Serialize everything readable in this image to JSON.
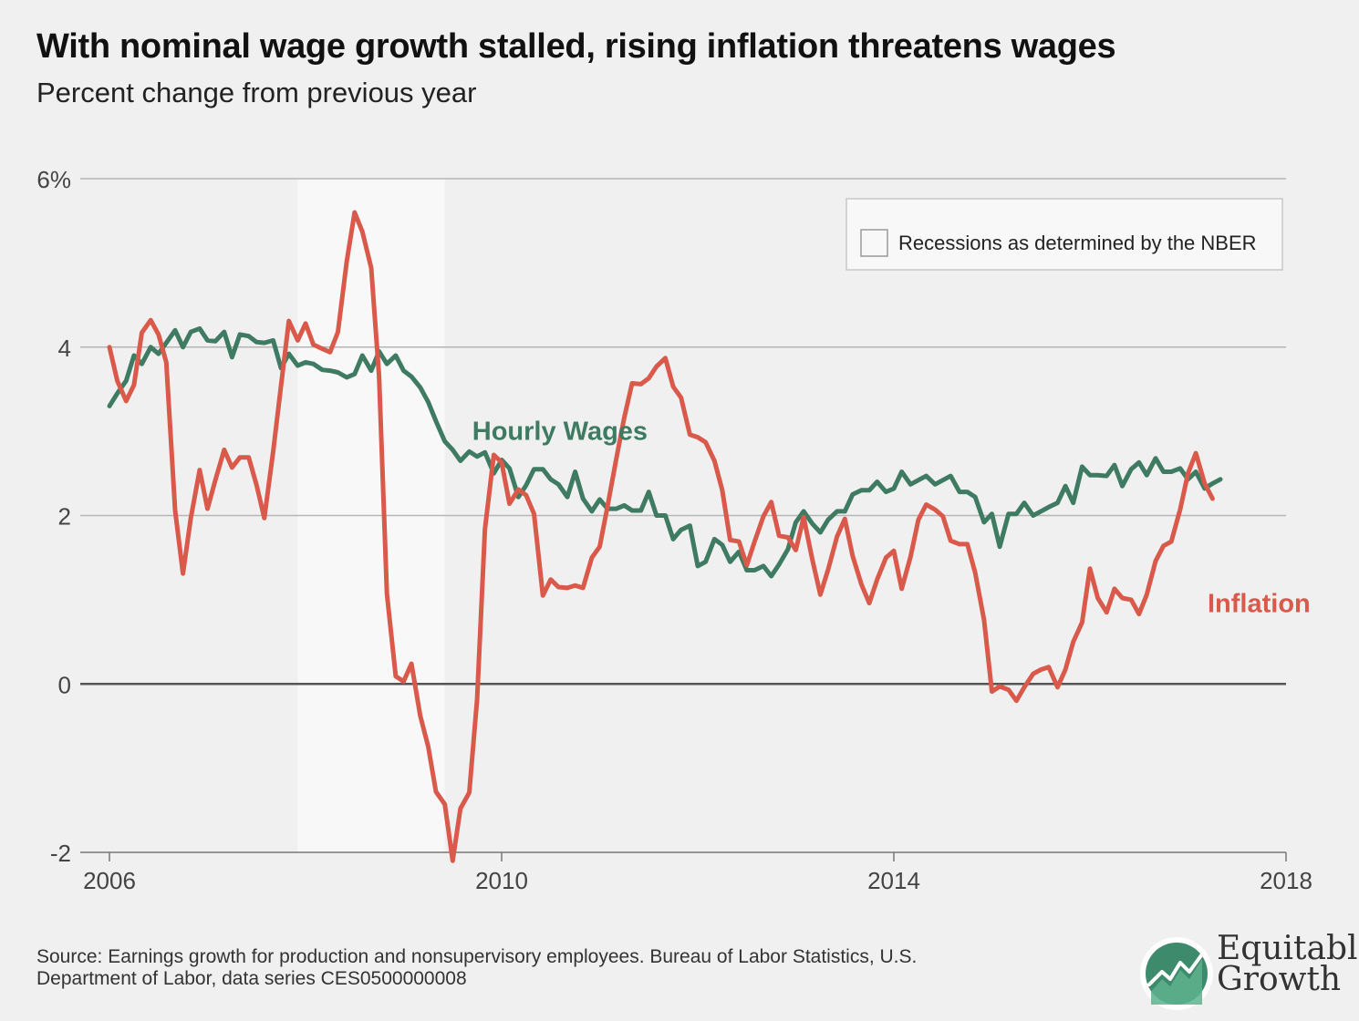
{
  "title": "With nominal wage growth stalled, rising inflation threatens wages",
  "subtitle": "Percent change from previous year",
  "source_lines": [
    "Source: Earnings growth for production and nonsupervisory employees. Bureau of Labor Statistics, U.S.",
    "Department of Labor, data series CES0500000008"
  ],
  "logo": {
    "line1": "Equitable",
    "line2": "Growth"
  },
  "chart_data": {
    "type": "line",
    "xlim": [
      2006,
      2018
    ],
    "ylim": [
      -2,
      6
    ],
    "x_ticks": [
      2006,
      2010,
      2014,
      2018
    ],
    "y_ticks": [
      {
        "value": 6,
        "label": "6%"
      },
      {
        "value": 4,
        "label": "4"
      },
      {
        "value": 2,
        "label": "2"
      },
      {
        "value": 0,
        "label": "0"
      },
      {
        "value": -2,
        "label": "-2"
      }
    ],
    "grid": true,
    "recession": {
      "start": 2007.92,
      "end": 2009.42
    },
    "legend": {
      "label": "Recessions as determined by the NBER",
      "position": "top-right"
    },
    "series": [
      {
        "name": "Hourly Wages",
        "color": "#3e7b62",
        "label_at": [
          2009.7,
          2.9
        ],
        "points": [
          [
            2006.0,
            3.3
          ],
          [
            2006.08,
            3.45
          ],
          [
            2006.17,
            3.6
          ],
          [
            2006.25,
            3.9
          ],
          [
            2006.33,
            3.8
          ],
          [
            2006.42,
            4.0
          ],
          [
            2006.5,
            3.92
          ],
          [
            2006.58,
            4.05
          ],
          [
            2006.67,
            4.2
          ],
          [
            2006.75,
            4.0
          ],
          [
            2006.83,
            4.18
          ],
          [
            2006.92,
            4.22
          ],
          [
            2007.0,
            4.08
          ],
          [
            2007.08,
            4.07
          ],
          [
            2007.17,
            4.18
          ],
          [
            2007.25,
            3.88
          ],
          [
            2007.33,
            4.15
          ],
          [
            2007.42,
            4.13
          ],
          [
            2007.5,
            4.06
          ],
          [
            2007.58,
            4.05
          ],
          [
            2007.67,
            4.08
          ],
          [
            2007.75,
            3.75
          ],
          [
            2007.83,
            3.92
          ],
          [
            2007.92,
            3.78
          ],
          [
            2008.0,
            3.82
          ],
          [
            2008.08,
            3.8
          ],
          [
            2008.17,
            3.73
          ],
          [
            2008.25,
            3.72
          ],
          [
            2008.33,
            3.7
          ],
          [
            2008.42,
            3.64
          ],
          [
            2008.5,
            3.68
          ],
          [
            2008.58,
            3.9
          ],
          [
            2008.67,
            3.72
          ],
          [
            2008.75,
            3.95
          ],
          [
            2008.83,
            3.8
          ],
          [
            2008.92,
            3.9
          ],
          [
            2009.0,
            3.72
          ],
          [
            2009.08,
            3.65
          ],
          [
            2009.17,
            3.52
          ],
          [
            2009.25,
            3.35
          ],
          [
            2009.33,
            3.12
          ],
          [
            2009.42,
            2.88
          ],
          [
            2009.5,
            2.78
          ],
          [
            2009.58,
            2.65
          ],
          [
            2009.67,
            2.76
          ],
          [
            2009.75,
            2.7
          ],
          [
            2009.83,
            2.75
          ],
          [
            2009.92,
            2.5
          ],
          [
            2010.0,
            2.66
          ],
          [
            2010.08,
            2.56
          ],
          [
            2010.17,
            2.22
          ],
          [
            2010.25,
            2.36
          ],
          [
            2010.33,
            2.55
          ],
          [
            2010.42,
            2.55
          ],
          [
            2010.5,
            2.43
          ],
          [
            2010.58,
            2.37
          ],
          [
            2010.67,
            2.22
          ],
          [
            2010.75,
            2.52
          ],
          [
            2010.83,
            2.2
          ],
          [
            2010.92,
            2.05
          ],
          [
            2011.0,
            2.19
          ],
          [
            2011.08,
            2.08
          ],
          [
            2011.17,
            2.08
          ],
          [
            2011.25,
            2.12
          ],
          [
            2011.33,
            2.06
          ],
          [
            2011.42,
            2.06
          ],
          [
            2011.5,
            2.28
          ],
          [
            2011.58,
            2.0
          ],
          [
            2011.67,
            2.0
          ],
          [
            2011.75,
            1.72
          ],
          [
            2011.83,
            1.83
          ],
          [
            2011.92,
            1.88
          ],
          [
            2012.0,
            1.4
          ],
          [
            2012.08,
            1.45
          ],
          [
            2012.17,
            1.72
          ],
          [
            2012.25,
            1.65
          ],
          [
            2012.33,
            1.45
          ],
          [
            2012.42,
            1.57
          ],
          [
            2012.5,
            1.35
          ],
          [
            2012.58,
            1.35
          ],
          [
            2012.67,
            1.4
          ],
          [
            2012.75,
            1.28
          ],
          [
            2012.83,
            1.42
          ],
          [
            2012.92,
            1.6
          ],
          [
            2013.0,
            1.92
          ],
          [
            2013.08,
            2.05
          ],
          [
            2013.17,
            1.9
          ],
          [
            2013.25,
            1.8
          ],
          [
            2013.33,
            1.95
          ],
          [
            2013.42,
            2.05
          ],
          [
            2013.5,
            2.05
          ],
          [
            2013.58,
            2.25
          ],
          [
            2013.67,
            2.3
          ],
          [
            2013.75,
            2.3
          ],
          [
            2013.83,
            2.4
          ],
          [
            2013.92,
            2.28
          ],
          [
            2014.0,
            2.32
          ],
          [
            2014.08,
            2.52
          ],
          [
            2014.17,
            2.37
          ],
          [
            2014.25,
            2.42
          ],
          [
            2014.33,
            2.47
          ],
          [
            2014.42,
            2.37
          ],
          [
            2014.5,
            2.42
          ],
          [
            2014.58,
            2.47
          ],
          [
            2014.67,
            2.28
          ],
          [
            2014.75,
            2.28
          ],
          [
            2014.83,
            2.22
          ],
          [
            2014.92,
            1.92
          ],
          [
            2015.0,
            2.02
          ],
          [
            2015.08,
            1.63
          ],
          [
            2015.17,
            2.02
          ],
          [
            2015.25,
            2.02
          ],
          [
            2015.33,
            2.15
          ],
          [
            2015.42,
            2.0
          ],
          [
            2015.5,
            2.05
          ],
          [
            2015.58,
            2.1
          ],
          [
            2015.67,
            2.15
          ],
          [
            2015.75,
            2.35
          ],
          [
            2015.83,
            2.15
          ],
          [
            2015.92,
            2.58
          ],
          [
            2016.0,
            2.48
          ],
          [
            2016.08,
            2.48
          ],
          [
            2016.17,
            2.47
          ],
          [
            2016.25,
            2.6
          ],
          [
            2016.33,
            2.35
          ],
          [
            2016.42,
            2.55
          ],
          [
            2016.5,
            2.63
          ],
          [
            2016.58,
            2.48
          ],
          [
            2016.67,
            2.68
          ],
          [
            2016.75,
            2.52
          ],
          [
            2016.83,
            2.52
          ],
          [
            2016.92,
            2.56
          ],
          [
            2017.0,
            2.43
          ],
          [
            2017.08,
            2.52
          ],
          [
            2017.17,
            2.32
          ],
          [
            2017.25,
            2.38
          ],
          [
            2017.33,
            2.43
          ]
        ]
      },
      {
        "name": "Inflation",
        "color": "#d9594a",
        "label_at": [
          2017.2,
          0.85
        ],
        "points": [
          [
            2006.0,
            4.0
          ],
          [
            2006.08,
            3.6
          ],
          [
            2006.17,
            3.36
          ],
          [
            2006.25,
            3.55
          ],
          [
            2006.33,
            4.17
          ],
          [
            2006.42,
            4.32
          ],
          [
            2006.5,
            4.15
          ],
          [
            2006.58,
            3.82
          ],
          [
            2006.67,
            2.06
          ],
          [
            2006.75,
            1.31
          ],
          [
            2006.83,
            1.97
          ],
          [
            2006.92,
            2.54
          ],
          [
            2007.0,
            2.08
          ],
          [
            2007.08,
            2.42
          ],
          [
            2007.17,
            2.78
          ],
          [
            2007.25,
            2.57
          ],
          [
            2007.33,
            2.69
          ],
          [
            2007.42,
            2.69
          ],
          [
            2007.5,
            2.36
          ],
          [
            2007.58,
            1.97
          ],
          [
            2007.67,
            2.76
          ],
          [
            2007.75,
            3.54
          ],
          [
            2007.83,
            4.31
          ],
          [
            2007.92,
            4.08
          ],
          [
            2008.0,
            4.28
          ],
          [
            2008.08,
            4.03
          ],
          [
            2008.17,
            3.98
          ],
          [
            2008.25,
            3.94
          ],
          [
            2008.33,
            4.18
          ],
          [
            2008.42,
            5.02
          ],
          [
            2008.5,
            5.6
          ],
          [
            2008.58,
            5.37
          ],
          [
            2008.67,
            4.94
          ],
          [
            2008.75,
            3.66
          ],
          [
            2008.83,
            1.07
          ],
          [
            2008.92,
            0.09
          ],
          [
            2009.0,
            0.03
          ],
          [
            2009.08,
            0.24
          ],
          [
            2009.17,
            -0.38
          ],
          [
            2009.25,
            -0.74
          ],
          [
            2009.33,
            -1.28
          ],
          [
            2009.42,
            -1.43
          ],
          [
            2009.5,
            -2.1
          ],
          [
            2009.58,
            -1.48
          ],
          [
            2009.67,
            -1.29
          ],
          [
            2009.75,
            -0.18
          ],
          [
            2009.83,
            1.84
          ],
          [
            2009.92,
            2.72
          ],
          [
            2010.0,
            2.63
          ],
          [
            2010.08,
            2.14
          ],
          [
            2010.17,
            2.31
          ],
          [
            2010.25,
            2.24
          ],
          [
            2010.33,
            2.02
          ],
          [
            2010.42,
            1.05
          ],
          [
            2010.5,
            1.24
          ],
          [
            2010.58,
            1.15
          ],
          [
            2010.67,
            1.14
          ],
          [
            2010.75,
            1.17
          ],
          [
            2010.83,
            1.14
          ],
          [
            2010.92,
            1.5
          ],
          [
            2011.0,
            1.63
          ],
          [
            2011.08,
            2.11
          ],
          [
            2011.17,
            2.68
          ],
          [
            2011.25,
            3.16
          ],
          [
            2011.33,
            3.57
          ],
          [
            2011.42,
            3.56
          ],
          [
            2011.5,
            3.63
          ],
          [
            2011.58,
            3.77
          ],
          [
            2011.67,
            3.87
          ],
          [
            2011.75,
            3.53
          ],
          [
            2011.83,
            3.4
          ],
          [
            2011.92,
            2.96
          ],
          [
            2012.0,
            2.93
          ],
          [
            2012.08,
            2.87
          ],
          [
            2012.17,
            2.65
          ],
          [
            2012.25,
            2.3
          ],
          [
            2012.33,
            1.71
          ],
          [
            2012.42,
            1.69
          ],
          [
            2012.5,
            1.41
          ],
          [
            2012.58,
            1.69
          ],
          [
            2012.67,
            1.99
          ],
          [
            2012.75,
            2.16
          ],
          [
            2012.83,
            1.76
          ],
          [
            2012.92,
            1.74
          ],
          [
            2013.0,
            1.59
          ],
          [
            2013.08,
            1.98
          ],
          [
            2013.17,
            1.47
          ],
          [
            2013.25,
            1.06
          ],
          [
            2013.33,
            1.36
          ],
          [
            2013.42,
            1.75
          ],
          [
            2013.5,
            1.96
          ],
          [
            2013.58,
            1.52
          ],
          [
            2013.67,
            1.18
          ],
          [
            2013.75,
            0.96
          ],
          [
            2013.83,
            1.24
          ],
          [
            2013.92,
            1.5
          ],
          [
            2014.0,
            1.58
          ],
          [
            2014.08,
            1.13
          ],
          [
            2014.17,
            1.51
          ],
          [
            2014.25,
            1.95
          ],
          [
            2014.33,
            2.13
          ],
          [
            2014.42,
            2.07
          ],
          [
            2014.5,
            1.99
          ],
          [
            2014.58,
            1.7
          ],
          [
            2014.67,
            1.66
          ],
          [
            2014.75,
            1.66
          ],
          [
            2014.83,
            1.32
          ],
          [
            2014.92,
            0.76
          ],
          [
            2015.0,
            -0.09
          ],
          [
            2015.08,
            -0.03
          ],
          [
            2015.17,
            -0.07
          ],
          [
            2015.25,
            -0.2
          ],
          [
            2015.33,
            -0.04
          ],
          [
            2015.42,
            0.12
          ],
          [
            2015.5,
            0.17
          ],
          [
            2015.58,
            0.2
          ],
          [
            2015.67,
            -0.04
          ],
          [
            2015.75,
            0.17
          ],
          [
            2015.83,
            0.5
          ],
          [
            2015.92,
            0.73
          ],
          [
            2016.0,
            1.37
          ],
          [
            2016.08,
            1.02
          ],
          [
            2016.17,
            0.85
          ],
          [
            2016.25,
            1.13
          ],
          [
            2016.33,
            1.02
          ],
          [
            2016.42,
            1.0
          ],
          [
            2016.5,
            0.83
          ],
          [
            2016.58,
            1.06
          ],
          [
            2016.67,
            1.46
          ],
          [
            2016.75,
            1.64
          ],
          [
            2016.83,
            1.69
          ],
          [
            2016.92,
            2.07
          ],
          [
            2017.0,
            2.5
          ],
          [
            2017.08,
            2.74
          ],
          [
            2017.17,
            2.38
          ],
          [
            2017.25,
            2.2
          ]
        ]
      }
    ]
  }
}
